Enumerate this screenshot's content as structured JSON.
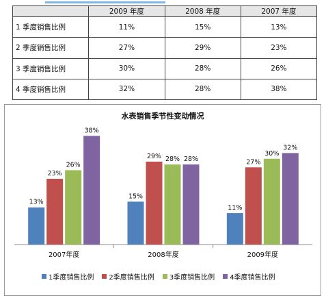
{
  "table": {
    "headers": [
      "",
      "2009 年度",
      "2008 年度",
      "2007 年度"
    ],
    "rows": [
      {
        "label": "1 季度销售比例",
        "cells": [
          "11%",
          "15%",
          "13%"
        ]
      },
      {
        "label": "2 季度销售比例",
        "cells": [
          "27%",
          "29%",
          "23%"
        ]
      },
      {
        "label": "3 季度销售比例",
        "cells": [
          "30%",
          "28%",
          "26%"
        ]
      },
      {
        "label": "4 季度销售比例",
        "cells": [
          "32%",
          "28%",
          "38%"
        ]
      }
    ]
  },
  "chart_data": {
    "type": "bar",
    "title": "水表销售季节性变动情况",
    "categories": [
      "2007年度",
      "2008年度",
      "2009年度"
    ],
    "series": [
      {
        "name": "1季度销售比例",
        "values": [
          13,
          15,
          11
        ],
        "labels": [
          "13%",
          "15%",
          "11%"
        ],
        "color": "#4f81bd"
      },
      {
        "name": "2季度销售比例",
        "values": [
          23,
          29,
          27
        ],
        "labels": [
          "23%",
          "29%",
          "27%"
        ],
        "color": "#c0504d"
      },
      {
        "name": "3季度销售比例",
        "values": [
          26,
          28,
          30
        ],
        "labels": [
          "26%",
          "28%",
          "30%"
        ],
        "color": "#9bbb59"
      },
      {
        "name": "4季度销售比例",
        "values": [
          38,
          28,
          32
        ],
        "labels": [
          "38%",
          "28%",
          "32%"
        ],
        "color": "#8064a2"
      }
    ],
    "ylim": [
      0,
      40
    ],
    "grid": false,
    "legend": "bottom"
  }
}
